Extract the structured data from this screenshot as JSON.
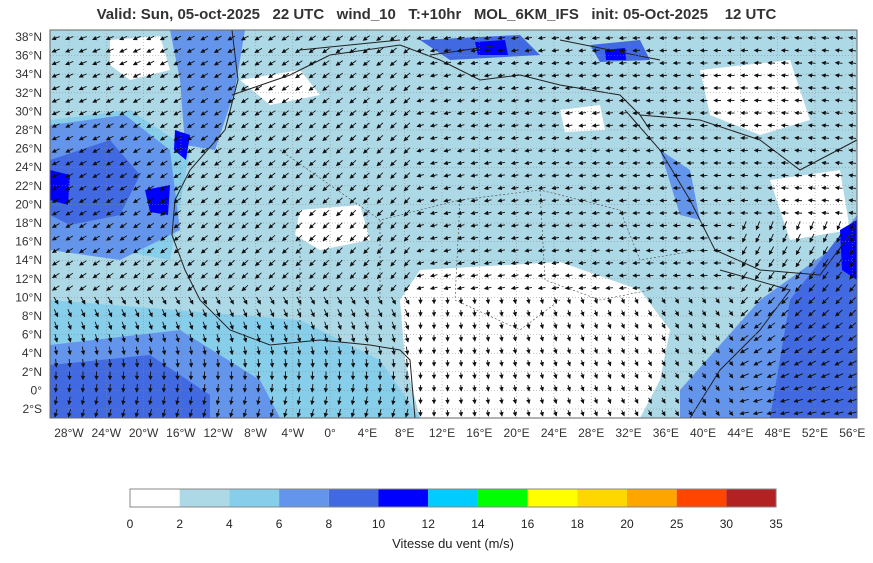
{
  "header": {
    "title": "Valid: Sun, 05-oct-2025   22 UTC   wind_10   T:+10hr   MOL_6KM_IFS   init: 05-Oct-2025    12 UTC"
  },
  "map": {
    "lat_labels": [
      "38°N",
      "36°N",
      "34°N",
      "32°N",
      "30°N",
      "28°N",
      "26°N",
      "24°N",
      "22°N",
      "20°N",
      "18°N",
      "16°N",
      "14°N",
      "12°N",
      "10°N",
      "8°N",
      "6°N",
      "4°N",
      "2°N",
      "0°",
      "2°S"
    ],
    "lon_labels": [
      "28°W",
      "24°W",
      "20°W",
      "16°W",
      "12°W",
      "8°W",
      "4°W",
      "0°",
      "4°E",
      "8°E",
      "12°E",
      "16°E",
      "20°E",
      "24°E",
      "28°E",
      "32°E",
      "36°E",
      "40°E",
      "44°E",
      "48°E",
      "52°E",
      "56°E"
    ]
  },
  "colorbar": {
    "title": "Vitesse du vent (m/s)",
    "ticks": [
      "0",
      "2",
      "4",
      "6",
      "8",
      "10",
      "12",
      "14",
      "16",
      "18",
      "20",
      "25",
      "30",
      "35"
    ],
    "colors": [
      "#ffffff",
      "#add8e6",
      "#87ceeb",
      "#6495ed",
      "#4169e1",
      "#0000ff",
      "#00ccff",
      "#00ff00",
      "#ffff00",
      "#ffd700",
      "#ffa500",
      "#ff4500",
      "#b22222"
    ]
  }
}
